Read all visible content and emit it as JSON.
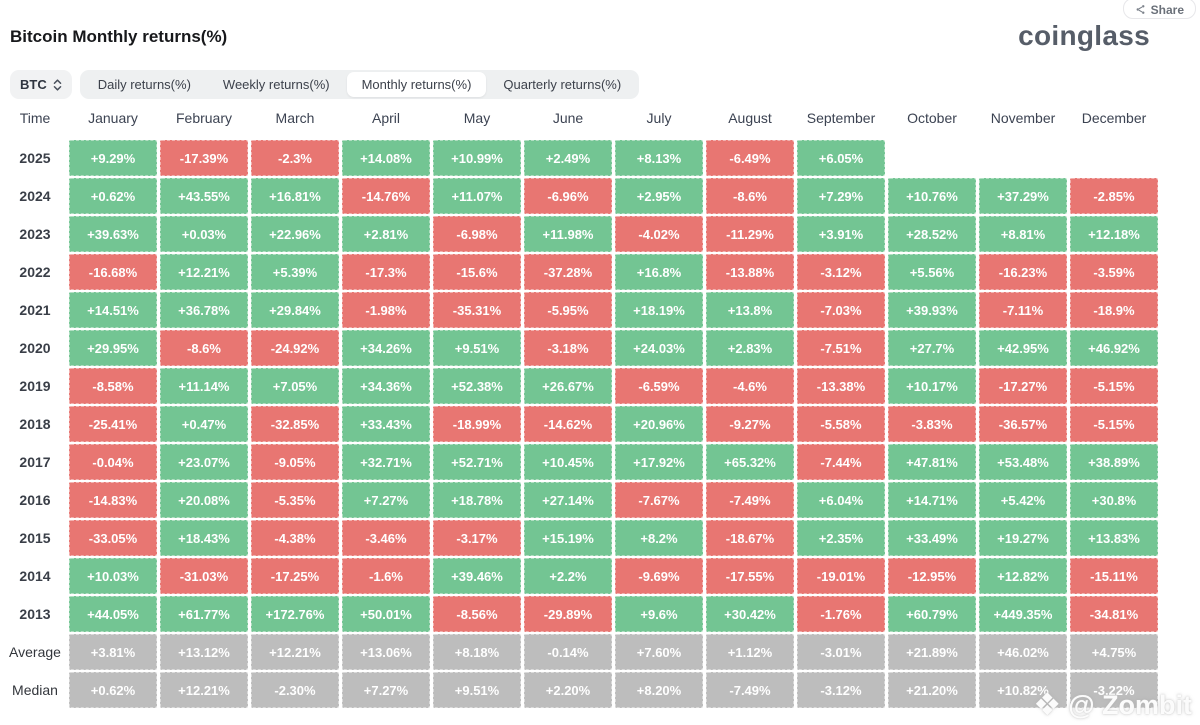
{
  "header": {
    "title": "Bitcoin Monthly returns(%)",
    "logo": "coinglass",
    "share_label": "Share"
  },
  "toolbar": {
    "symbol": "BTC",
    "tabs": [
      {
        "label": "Daily returns(%)",
        "active": false
      },
      {
        "label": "Weekly returns(%)",
        "active": false
      },
      {
        "label": "Monthly returns(%)",
        "active": true
      },
      {
        "label": "Quarterly returns(%)",
        "active": false
      }
    ]
  },
  "table": {
    "time_header": "Time",
    "months": [
      "January",
      "February",
      "March",
      "April",
      "May",
      "June",
      "July",
      "August",
      "September",
      "October",
      "November",
      "December"
    ],
    "rows": [
      {
        "label": "2025",
        "type": "year",
        "values": [
          "+9.29%",
          "-17.39%",
          "-2.3%",
          "+14.08%",
          "+10.99%",
          "+2.49%",
          "+8.13%",
          "-6.49%",
          "+6.05%",
          "",
          "",
          ""
        ]
      },
      {
        "label": "2024",
        "type": "year",
        "values": [
          "+0.62%",
          "+43.55%",
          "+16.81%",
          "-14.76%",
          "+11.07%",
          "-6.96%",
          "+2.95%",
          "-8.6%",
          "+7.29%",
          "+10.76%",
          "+37.29%",
          "-2.85%"
        ]
      },
      {
        "label": "2023",
        "type": "year",
        "values": [
          "+39.63%",
          "+0.03%",
          "+22.96%",
          "+2.81%",
          "-6.98%",
          "+11.98%",
          "-4.02%",
          "-11.29%",
          "+3.91%",
          "+28.52%",
          "+8.81%",
          "+12.18%"
        ]
      },
      {
        "label": "2022",
        "type": "year",
        "values": [
          "-16.68%",
          "+12.21%",
          "+5.39%",
          "-17.3%",
          "-15.6%",
          "-37.28%",
          "+16.8%",
          "-13.88%",
          "-3.12%",
          "+5.56%",
          "-16.23%",
          "-3.59%"
        ]
      },
      {
        "label": "2021",
        "type": "year",
        "values": [
          "+14.51%",
          "+36.78%",
          "+29.84%",
          "-1.98%",
          "-35.31%",
          "-5.95%",
          "+18.19%",
          "+13.8%",
          "-7.03%",
          "+39.93%",
          "-7.11%",
          "-18.9%"
        ]
      },
      {
        "label": "2020",
        "type": "year",
        "values": [
          "+29.95%",
          "-8.6%",
          "-24.92%",
          "+34.26%",
          "+9.51%",
          "-3.18%",
          "+24.03%",
          "+2.83%",
          "-7.51%",
          "+27.7%",
          "+42.95%",
          "+46.92%"
        ]
      },
      {
        "label": "2019",
        "type": "year",
        "values": [
          "-8.58%",
          "+11.14%",
          "+7.05%",
          "+34.36%",
          "+52.38%",
          "+26.67%",
          "-6.59%",
          "-4.6%",
          "-13.38%",
          "+10.17%",
          "-17.27%",
          "-5.15%"
        ]
      },
      {
        "label": "2018",
        "type": "year",
        "values": [
          "-25.41%",
          "+0.47%",
          "-32.85%",
          "+33.43%",
          "-18.99%",
          "-14.62%",
          "+20.96%",
          "-9.27%",
          "-5.58%",
          "-3.83%",
          "-36.57%",
          "-5.15%"
        ]
      },
      {
        "label": "2017",
        "type": "year",
        "values": [
          "-0.04%",
          "+23.07%",
          "-9.05%",
          "+32.71%",
          "+52.71%",
          "+10.45%",
          "+17.92%",
          "+65.32%",
          "-7.44%",
          "+47.81%",
          "+53.48%",
          "+38.89%"
        ]
      },
      {
        "label": "2016",
        "type": "year",
        "values": [
          "-14.83%",
          "+20.08%",
          "-5.35%",
          "+7.27%",
          "+18.78%",
          "+27.14%",
          "-7.67%",
          "-7.49%",
          "+6.04%",
          "+14.71%",
          "+5.42%",
          "+30.8%"
        ]
      },
      {
        "label": "2015",
        "type": "year",
        "values": [
          "-33.05%",
          "+18.43%",
          "-4.38%",
          "-3.46%",
          "-3.17%",
          "+15.19%",
          "+8.2%",
          "-18.67%",
          "+2.35%",
          "+33.49%",
          "+19.27%",
          "+13.83%"
        ]
      },
      {
        "label": "2014",
        "type": "year",
        "values": [
          "+10.03%",
          "-31.03%",
          "-17.25%",
          "-1.6%",
          "+39.46%",
          "+2.2%",
          "-9.69%",
          "-17.55%",
          "-19.01%",
          "-12.95%",
          "+12.82%",
          "-15.11%"
        ]
      },
      {
        "label": "2013",
        "type": "year",
        "values": [
          "+44.05%",
          "+61.77%",
          "+172.76%",
          "+50.01%",
          "-8.56%",
          "-29.89%",
          "+9.6%",
          "+30.42%",
          "-1.76%",
          "+60.79%",
          "+449.35%",
          "-34.81%"
        ]
      },
      {
        "label": "Average",
        "type": "summary",
        "values": [
          "+3.81%",
          "+13.12%",
          "+12.21%",
          "+13.06%",
          "+8.18%",
          "-0.14%",
          "+7.60%",
          "+1.12%",
          "-3.01%",
          "+21.89%",
          "+46.02%",
          "+4.75%"
        ]
      },
      {
        "label": "Median",
        "type": "summary",
        "values": [
          "+0.62%",
          "+12.21%",
          "-2.30%",
          "+7.27%",
          "+9.51%",
          "+2.20%",
          "+8.20%",
          "-7.49%",
          "-3.12%",
          "+21.20%",
          "+10.82%",
          "-3.22%"
        ]
      }
    ]
  },
  "watermark": {
    "text": "@ Zombit",
    "icon": "❖"
  },
  "colors": {
    "positive": "#73c593",
    "negative": "#e87672",
    "summary": "#bdbdbd"
  }
}
